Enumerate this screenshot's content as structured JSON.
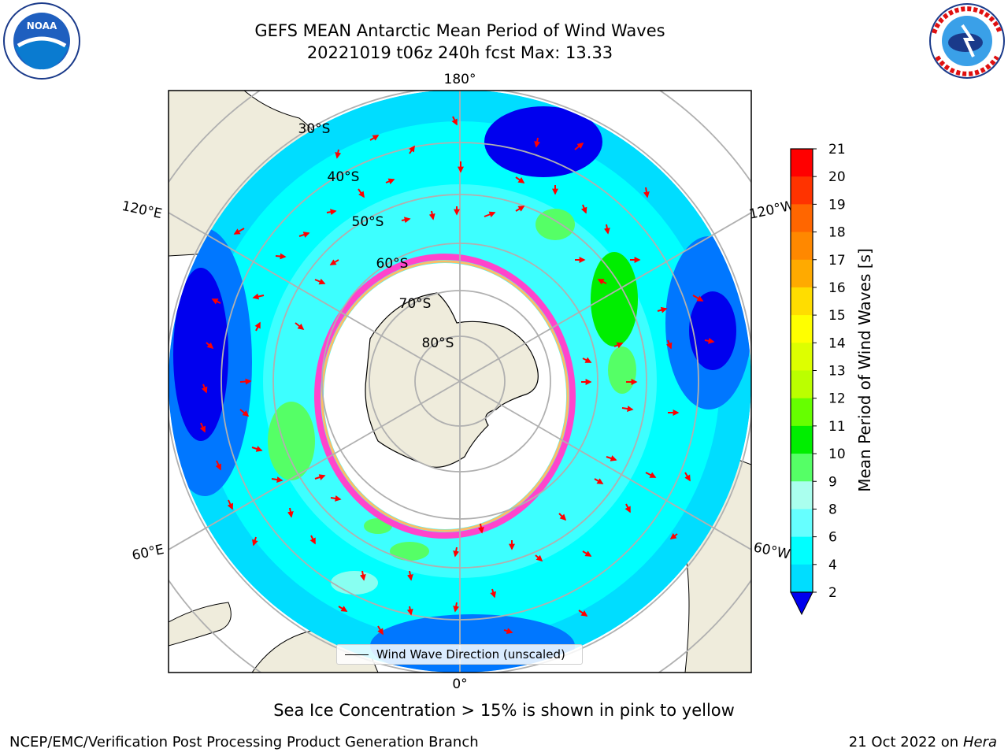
{
  "header": {
    "title_line1": "GEFS MEAN Antarctic Mean Period of Wind Waves",
    "title_line2": "20221019 t06z 240h fcst   Max: 13.33"
  },
  "logos": {
    "left": {
      "icon": "noaa-logo",
      "text": "NOAA"
    },
    "right": {
      "icon": "national-weather-service-logo"
    }
  },
  "map": {
    "projection": "south-polar-stereographic",
    "lon_labels": [
      "180°",
      "120°E",
      "120°W",
      "60°E",
      "60°W",
      "0°"
    ],
    "lat_labels": [
      "30°S",
      "40°S",
      "50°S",
      "60°S",
      "70°S",
      "80°S"
    ],
    "legend_label": "Wind Wave Direction (unscaled)"
  },
  "colorbar": {
    "label": "Mean Period of Wind Waves [s]",
    "ticks": [
      "21",
      "20",
      "19",
      "18",
      "17",
      "16",
      "15",
      "14",
      "13",
      "12",
      "11",
      "10",
      "9",
      "8",
      "6",
      "4",
      "2"
    ],
    "colors": [
      "#ff0000",
      "#ff3300",
      "#ff6600",
      "#ff8800",
      "#ffaa00",
      "#ffdd00",
      "#ffff00",
      "#ddff00",
      "#bbff00",
      "#66ff00",
      "#00ee00",
      "#55ff66",
      "#aaffee",
      "#66ffff",
      "#00ffff",
      "#00ddff",
      "#0077ff"
    ],
    "under_color": "#0000ee"
  },
  "note": "Sea Ice Concentration > 15% is shown in pink to yellow",
  "footer": {
    "left": "NCEP/EMC/Verification Post Processing Product Generation Branch",
    "date": "21 Oct 2022 on ",
    "machine": "Hera"
  }
}
